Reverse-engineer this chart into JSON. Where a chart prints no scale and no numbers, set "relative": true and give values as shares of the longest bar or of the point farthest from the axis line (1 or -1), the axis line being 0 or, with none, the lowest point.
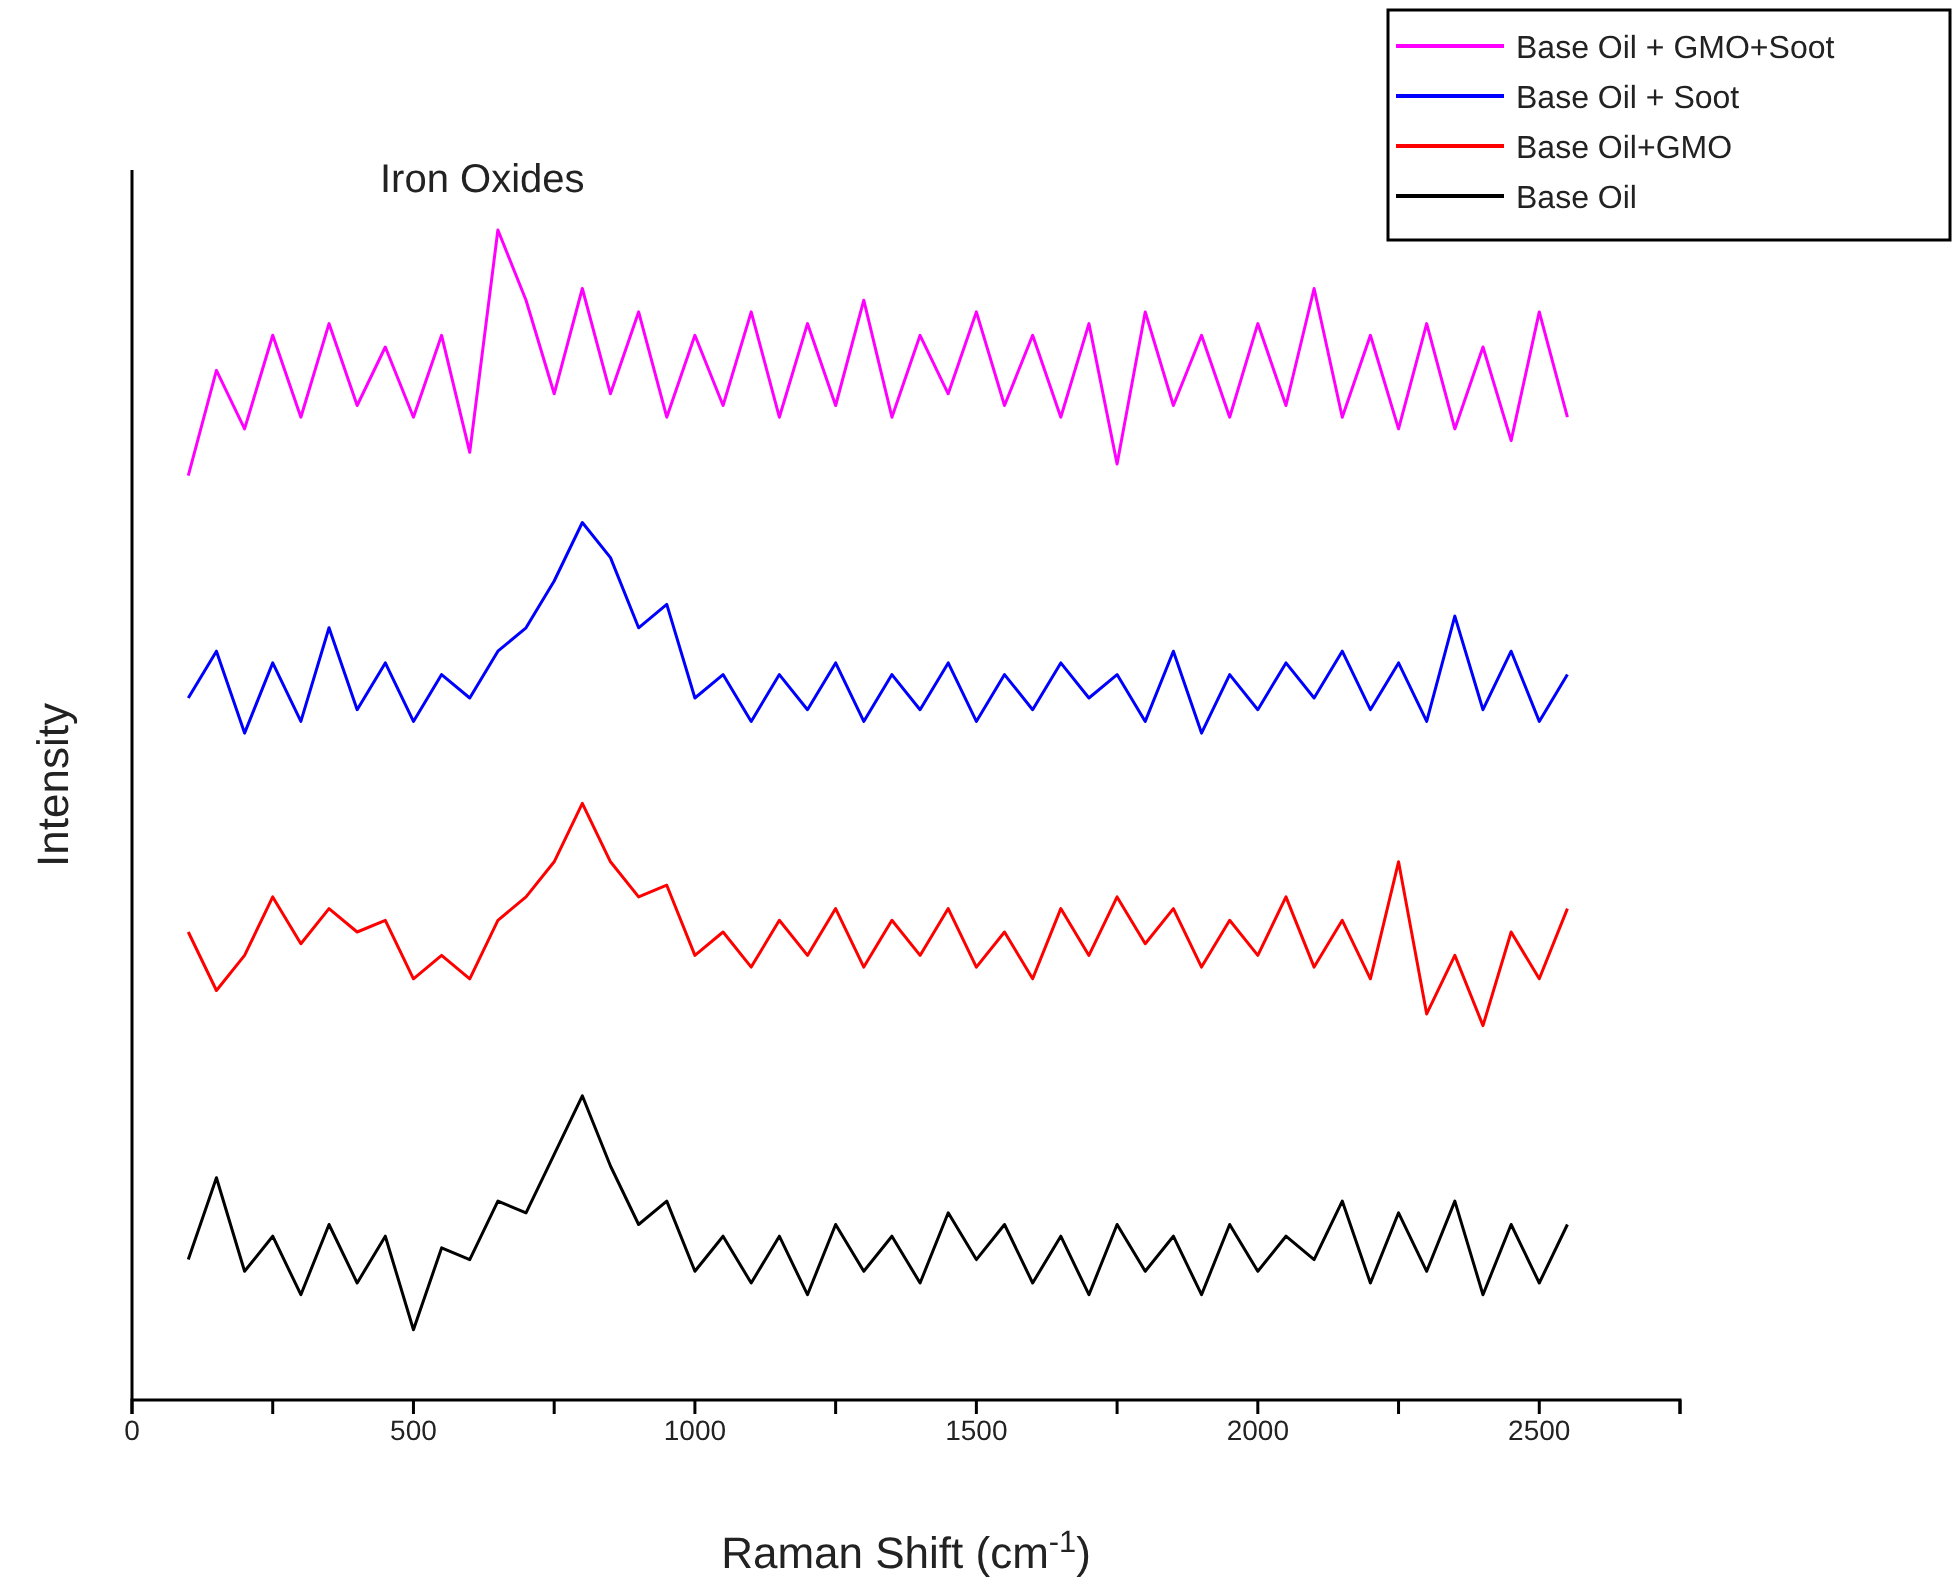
{
  "chart_data": {
    "type": "line",
    "relative": true,
    "xlabel": "Raman Shift (cm$^{-1}$)",
    "ylabel": "Intensity",
    "annotations": [
      "Iron Oxides"
    ],
    "xlim": [
      0,
      2750
    ],
    "xticks": [
      0,
      {
        "value": 250,
        "label": null
      },
      500,
      {
        "value": 750,
        "label": null
      },
      1000,
      {
        "value": 1250,
        "label": null
      },
      1500,
      {
        "value": 1750,
        "label": null
      },
      2000,
      {
        "value": 2250,
        "label": null
      },
      2500,
      {
        "value": 2750,
        "label": null
      }
    ],
    "x": [
      100,
      150,
      200,
      250,
      300,
      350,
      400,
      450,
      500,
      550,
      600,
      650,
      700,
      750,
      800,
      850,
      900,
      950,
      1000,
      1050,
      1100,
      1150,
      1200,
      1250,
      1300,
      1350,
      1400,
      1450,
      1500,
      1550,
      1600,
      1650,
      1700,
      1750,
      1800,
      1850,
      1900,
      1950,
      2000,
      2050,
      2100,
      2150,
      2200,
      2250,
      2300,
      2350,
      2400,
      2450,
      2500,
      2550
    ],
    "legend": "top right",
    "grid": false,
    "series": [
      {
        "name": "Base Oil + GMO+Soot",
        "color": "#ff00ff",
        "values": [
          0.79,
          0.88,
          0.83,
          0.91,
          0.84,
          0.92,
          0.85,
          0.9,
          0.84,
          0.91,
          0.81,
          1.0,
          0.94,
          0.86,
          0.95,
          0.86,
          0.93,
          0.84,
          0.91,
          0.85,
          0.93,
          0.84,
          0.92,
          0.85,
          0.94,
          0.84,
          0.91,
          0.86,
          0.93,
          0.85,
          0.91,
          0.84,
          0.92,
          0.8,
          0.93,
          0.85,
          0.91,
          0.84,
          0.92,
          0.85,
          0.95,
          0.84,
          0.91,
          0.83,
          0.92,
          0.83,
          0.9,
          0.82,
          0.93,
          0.84
        ]
      },
      {
        "name": "Base Oil + Soot",
        "color": "#0000ff",
        "values": [
          0.6,
          0.64,
          0.57,
          0.63,
          0.58,
          0.66,
          0.59,
          0.63,
          0.58,
          0.62,
          0.6,
          0.64,
          0.66,
          0.7,
          0.75,
          0.72,
          0.66,
          0.68,
          0.6,
          0.62,
          0.58,
          0.62,
          0.59,
          0.63,
          0.58,
          0.62,
          0.59,
          0.63,
          0.58,
          0.62,
          0.59,
          0.63,
          0.6,
          0.62,
          0.58,
          0.64,
          0.57,
          0.62,
          0.59,
          0.63,
          0.6,
          0.64,
          0.59,
          0.63,
          0.58,
          0.67,
          0.59,
          0.64,
          0.58,
          0.62
        ]
      },
      {
        "name": "Base Oil+GMO",
        "color": "#ff0000",
        "values": [
          0.4,
          0.35,
          0.38,
          0.43,
          0.39,
          0.42,
          0.4,
          0.41,
          0.36,
          0.38,
          0.36,
          0.41,
          0.43,
          0.46,
          0.51,
          0.46,
          0.43,
          0.44,
          0.38,
          0.4,
          0.37,
          0.41,
          0.38,
          0.42,
          0.37,
          0.41,
          0.38,
          0.42,
          0.37,
          0.4,
          0.36,
          0.42,
          0.38,
          0.43,
          0.39,
          0.42,
          0.37,
          0.41,
          0.38,
          0.43,
          0.37,
          0.41,
          0.36,
          0.46,
          0.33,
          0.38,
          0.32,
          0.4,
          0.36,
          0.42
        ]
      },
      {
        "name": "Base Oil",
        "color": "#000000",
        "values": [
          0.12,
          0.19,
          0.11,
          0.14,
          0.09,
          0.15,
          0.1,
          0.14,
          0.06,
          0.13,
          0.12,
          0.17,
          0.16,
          0.21,
          0.26,
          0.2,
          0.15,
          0.17,
          0.11,
          0.14,
          0.1,
          0.14,
          0.09,
          0.15,
          0.11,
          0.14,
          0.1,
          0.16,
          0.12,
          0.15,
          0.1,
          0.14,
          0.09,
          0.15,
          0.11,
          0.14,
          0.09,
          0.15,
          0.11,
          0.14,
          0.12,
          0.17,
          0.1,
          0.16,
          0.11,
          0.17,
          0.09,
          0.15,
          0.1,
          0.15
        ]
      }
    ]
  }
}
